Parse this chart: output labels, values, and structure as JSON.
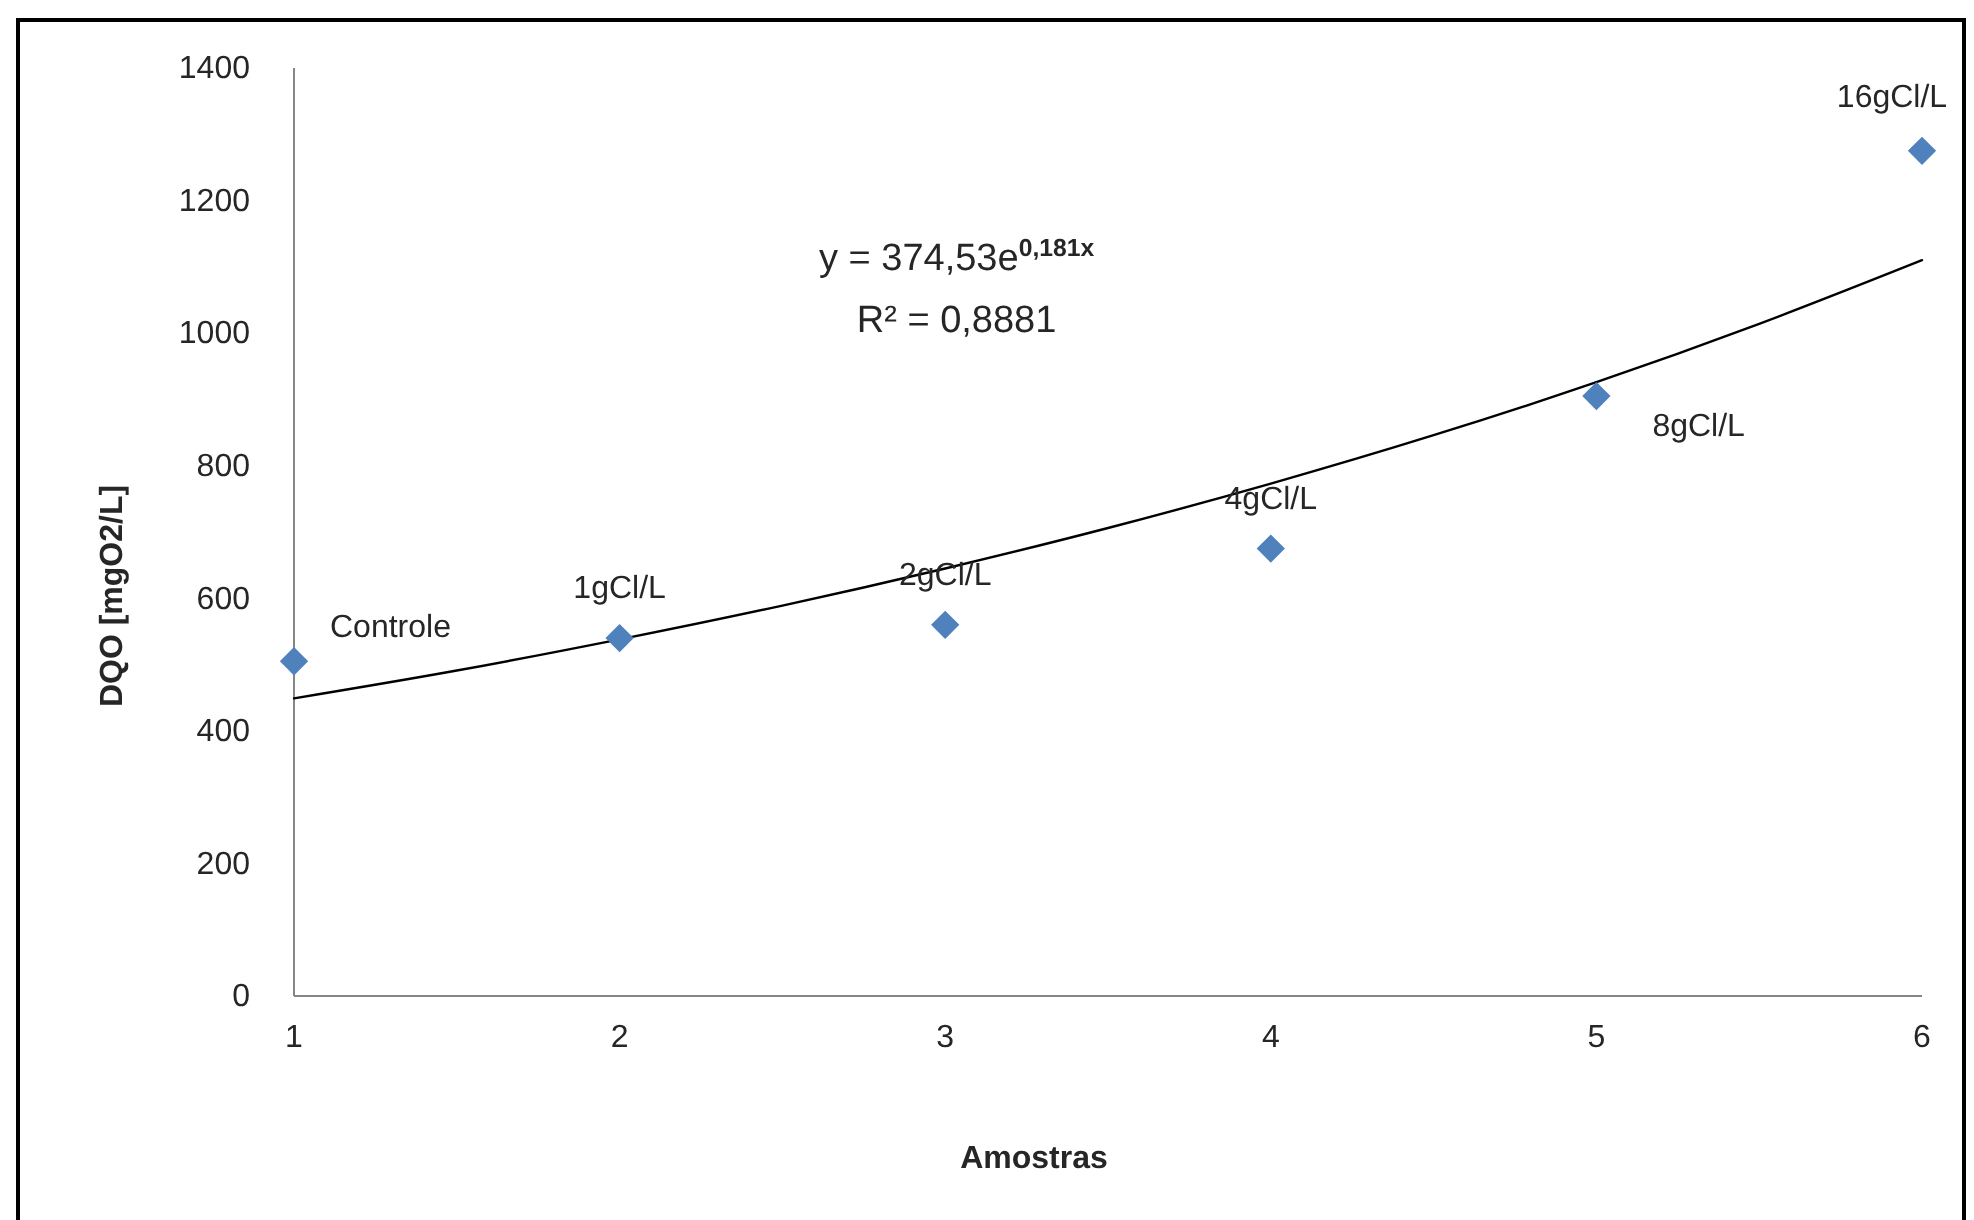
{
  "chart_data": {
    "type": "scatter",
    "xlabel": "Amostras",
    "ylabel": "DQO [mgO2/L]",
    "marker": "diamond",
    "x": [
      1,
      2,
      3,
      4,
      5,
      6
    ],
    "series": [
      {
        "color": "#4f81bd",
        "values": [
          505,
          540,
          560,
          675,
          905,
          1275
        ]
      },
      {
        "type": "line",
        "color": "#000000",
        "marker": "none",
        "line_style": "solid",
        "x": [
          1,
          1.5,
          2,
          2.5,
          3,
          3.5,
          4,
          4.5,
          5,
          5.5,
          6
        ],
        "values": [
          449,
          491,
          538,
          589,
          645,
          706,
          773,
          846,
          926,
          1014,
          1110
        ]
      }
    ],
    "xlim": [
      1,
      6
    ],
    "xticks": [
      1,
      2,
      3,
      4,
      5,
      6
    ],
    "ylim": [
      0,
      1400
    ],
    "yticks": [
      0,
      200,
      400,
      600,
      800,
      1000,
      1200,
      1400
    ],
    "annotations": [
      "y = 374,53e$^{0,181x}$",
      "R² = 0,8881",
      {
        "text": "Controle",
        "x": 1,
        "y": 505
      },
      {
        "text": "1gCl/L",
        "x": 2,
        "y": 540
      },
      {
        "text": "2gCl/L",
        "x": 3,
        "y": 560
      },
      {
        "text": "4gCl/L",
        "x": 4,
        "y": 675
      },
      {
        "text": "8gCl/L",
        "x": 5,
        "y": 905
      },
      {
        "text": "16gCl/L",
        "x": 6,
        "y": 1275
      }
    ]
  }
}
